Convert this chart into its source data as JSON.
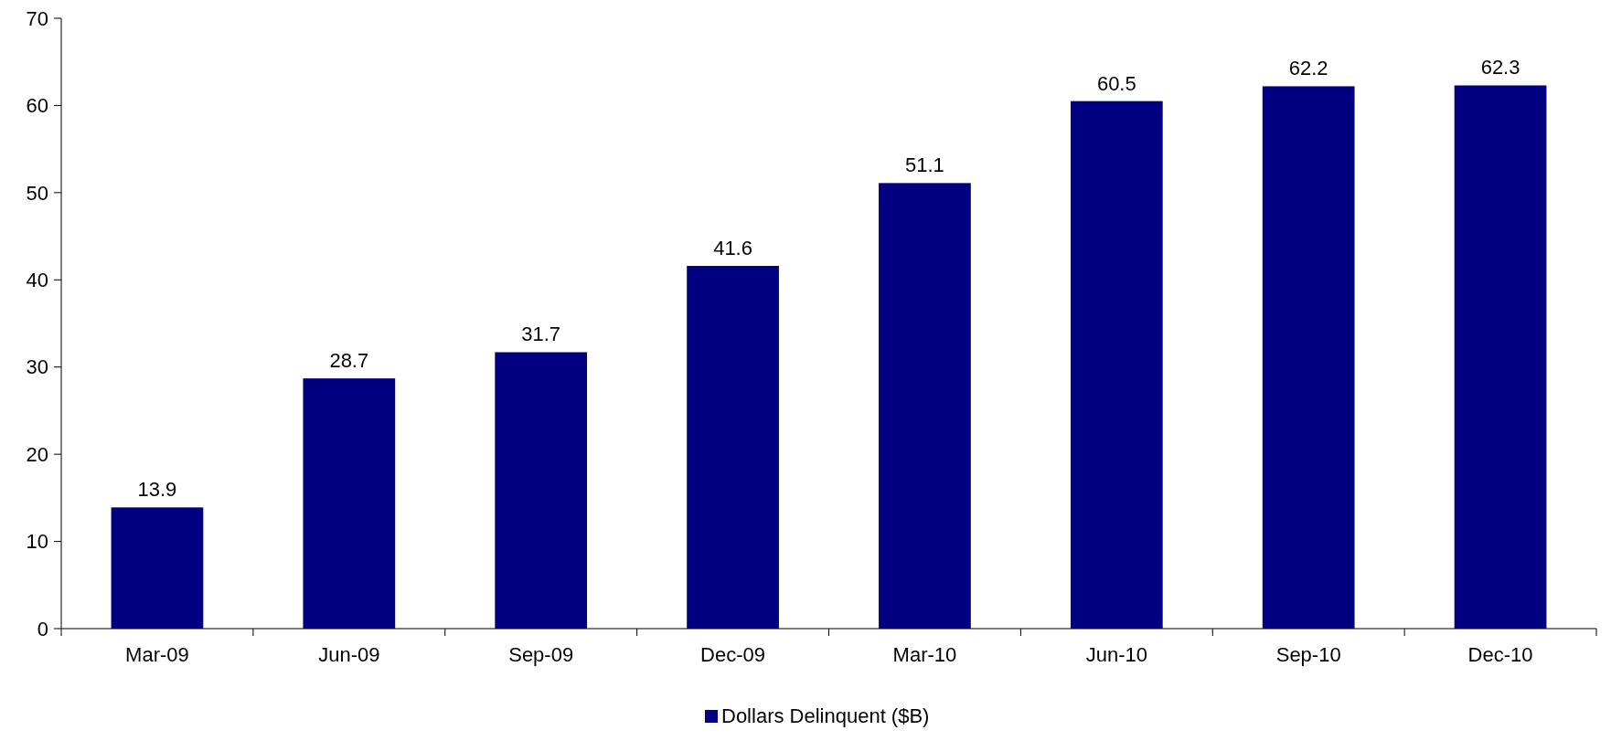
{
  "chart_data": {
    "type": "bar",
    "categories": [
      "Mar-09",
      "Jun-09",
      "Sep-09",
      "Dec-09",
      "Mar-10",
      "Jun-10",
      "Sep-10",
      "Dec-10"
    ],
    "series": [
      {
        "name": "Dollars Delinquent ($B)",
        "color": "#000080",
        "values": [
          13.9,
          28.7,
          31.7,
          41.6,
          51.1,
          60.5,
          62.2,
          62.3
        ]
      }
    ],
    "ylim": [
      0,
      70
    ],
    "yticks": [
      0,
      10,
      20,
      30,
      40,
      50,
      60,
      70
    ],
    "data_labels": true,
    "legend": "bottom",
    "grid": false
  }
}
